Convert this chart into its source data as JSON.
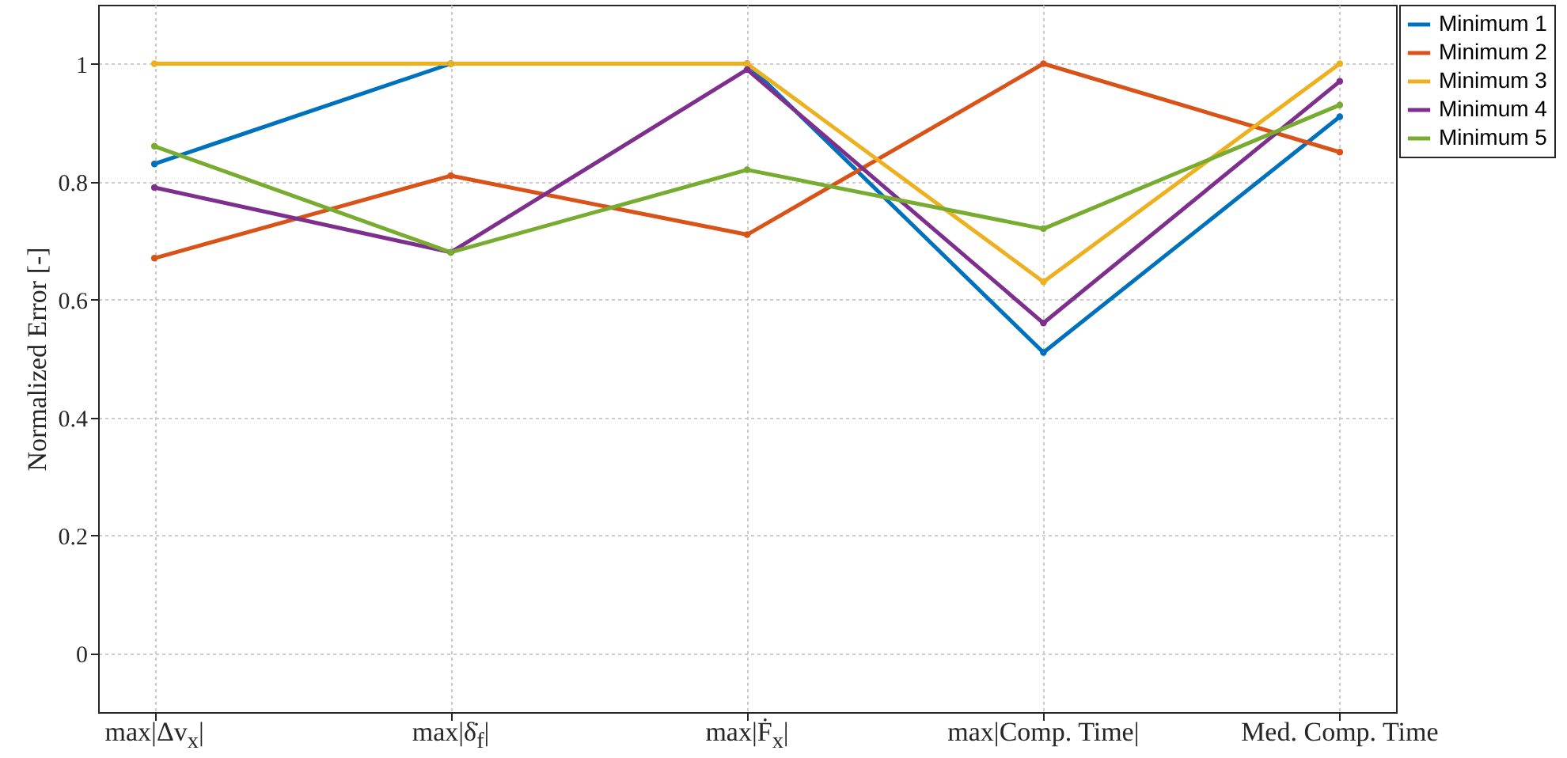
{
  "chart_data": {
    "type": "line",
    "ylabel": "Normalized Error [-]",
    "categories": [
      "max|Δv$_{x}$|",
      "max|δ̇$_{f}$|",
      "max|Ḟ$_{x}$|",
      "max|Comp. Time|",
      "Med. Comp. Time"
    ],
    "series": [
      {
        "name": "Minimum 1",
        "color": "#0072bd",
        "values": [
          0.83,
          1.0,
          1.0,
          0.51,
          0.91
        ]
      },
      {
        "name": "Minimum 2",
        "color": "#d95319",
        "values": [
          0.67,
          0.81,
          0.71,
          1.0,
          0.85
        ]
      },
      {
        "name": "Minimum 3",
        "color": "#edb120",
        "values": [
          1.0,
          1.0,
          1.0,
          0.63,
          1.0
        ]
      },
      {
        "name": "Minimum 4",
        "color": "#7e2f8e",
        "values": [
          0.79,
          0.68,
          0.99,
          0.56,
          0.97
        ]
      },
      {
        "name": "Minimum 5",
        "color": "#77ac30",
        "values": [
          0.86,
          0.68,
          0.82,
          0.72,
          0.93
        ]
      }
    ],
    "ylim": [
      -0.1,
      1.1
    ],
    "yticks": [
      0,
      0.2,
      0.4,
      0.6,
      0.8,
      1
    ],
    "grid": true,
    "legend": "top right",
    "marker": "circle",
    "line_style": "solid"
  }
}
